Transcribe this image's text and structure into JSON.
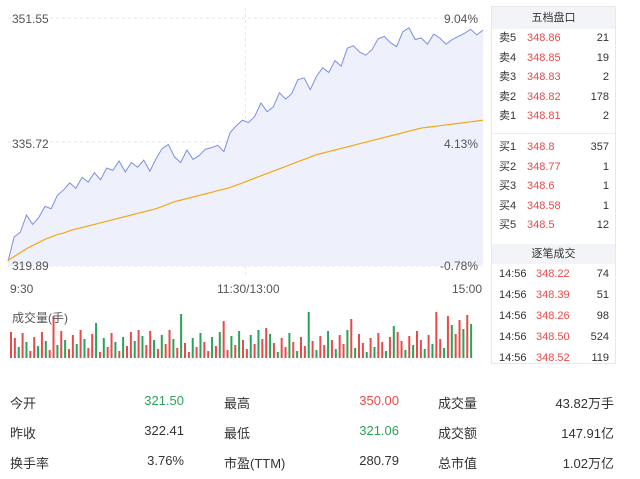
{
  "chart": {
    "y_high_price": "351.55",
    "y_mid_price": "335.72",
    "y_low_price": "319.89",
    "y_high_pct": "9.04%",
    "y_mid_pct": "4.13%",
    "y_low_pct": "-0.78%",
    "t_open": "9:30",
    "t_mid": "11:30/13:00",
    "t_close": "15:00",
    "volume_label": "成交量(手)",
    "colors": {
      "price_line": "#7b8fe0",
      "avg_line": "#f0a818",
      "up": "#e84a4a",
      "down": "#2aa35a",
      "grid": "#e6e6e6"
    }
  },
  "chart_data": {
    "type": "line",
    "ylim": [
      319.89,
      351.55
    ],
    "series": [
      {
        "values": [
          320.5,
          323.6,
          324.2,
          326.4,
          325.2,
          326.1,
          327.5,
          327.2,
          328.9,
          329.6,
          330.5,
          329.8,
          331.2,
          330.6,
          331.8,
          330.9,
          332.4,
          332.1,
          333.3,
          331.9,
          333.1,
          332.5,
          333.4,
          332.0,
          333.6,
          334.9,
          335.4,
          333.8,
          333.1,
          334.7,
          333.5,
          334.0,
          334.8,
          335.0,
          335.3,
          334.5,
          336.9,
          337.8,
          338.5,
          338.2,
          339.0,
          340.7,
          339.6,
          340.2,
          342.0,
          341.2,
          341.9,
          343.7,
          343.9,
          342.4,
          344.1,
          345.2,
          344.6,
          346.1,
          345.4,
          347.7,
          348.0,
          347.2,
          346.8,
          347.5,
          348.9,
          349.2,
          348.4,
          347.9,
          349.8,
          350.3,
          348.8,
          349.0,
          348.2,
          349.5,
          349.0,
          348.2,
          348.8,
          349.2,
          349.6,
          350.1,
          349.4,
          350.0
        ]
      },
      {
        "values": [
          320.6,
          321.1,
          321.6,
          322.1,
          322.5,
          322.9,
          323.3,
          323.6,
          323.9,
          324.1,
          324.4,
          324.6,
          324.8,
          325.0,
          325.2,
          325.4,
          325.6,
          325.8,
          326.0,
          326.2,
          326.4,
          326.6,
          326.8,
          327.0,
          327.2,
          327.5,
          327.8,
          328.1,
          328.3,
          328.5,
          328.7,
          328.9,
          329.1,
          329.3,
          329.5,
          329.7,
          329.9,
          330.2,
          330.5,
          330.8,
          331.1,
          331.4,
          331.7,
          332.0,
          332.3,
          332.6,
          332.9,
          333.2,
          333.5,
          333.8,
          334.1,
          334.3,
          334.5,
          334.7,
          334.9,
          335.1,
          335.3,
          335.5,
          335.7,
          335.9,
          336.1,
          336.3,
          336.5,
          336.7,
          336.9,
          337.1,
          337.3,
          337.5,
          337.6,
          337.7,
          337.8,
          337.9,
          338.0,
          338.1,
          338.2,
          338.3,
          338.4,
          338.5
        ]
      }
    ]
  },
  "order_book": {
    "title": "五档盘口",
    "asks": [
      {
        "name": "卖5",
        "price": "348.86",
        "qty": "21"
      },
      {
        "name": "卖4",
        "price": "348.85",
        "qty": "19"
      },
      {
        "name": "卖3",
        "price": "348.83",
        "qty": "2"
      },
      {
        "name": "卖2",
        "price": "348.82",
        "qty": "178"
      },
      {
        "name": "卖1",
        "price": "348.81",
        "qty": "2"
      }
    ],
    "bids": [
      {
        "name": "买1",
        "price": "348.8",
        "qty": "357"
      },
      {
        "name": "买2",
        "price": "348.77",
        "qty": "1"
      },
      {
        "name": "买3",
        "price": "348.6",
        "qty": "1"
      },
      {
        "name": "买4",
        "price": "348.58",
        "qty": "1"
      },
      {
        "name": "买5",
        "price": "348.5",
        "qty": "12"
      }
    ]
  },
  "trades": {
    "title": "逐笔成交",
    "rows": [
      {
        "time": "14:56",
        "price": "348.22",
        "qty": "74"
      },
      {
        "time": "14:56",
        "price": "348.39",
        "qty": "51"
      },
      {
        "time": "14:56",
        "price": "348.26",
        "qty": "98"
      },
      {
        "time": "14:56",
        "price": "348.50",
        "qty": "524"
      },
      {
        "time": "14:56",
        "price": "348.52",
        "qty": "119"
      }
    ]
  },
  "stats": {
    "open_label": "今开",
    "open_value": "321.50",
    "prev_close_label": "昨收",
    "prev_close_value": "322.41",
    "turnover_label": "换手率",
    "turnover_value": "3.76%",
    "high_label": "最高",
    "high_value": "350.00",
    "low_label": "最低",
    "low_value": "321.06",
    "pe_label": "市盈(TTM)",
    "pe_value": "280.79",
    "volume_label": "成交量",
    "volume_value": "43.82万手",
    "amount_label": "成交额",
    "amount_value": "147.91亿",
    "mcap_label": "总市值",
    "mcap_value": "1.02万亿"
  }
}
